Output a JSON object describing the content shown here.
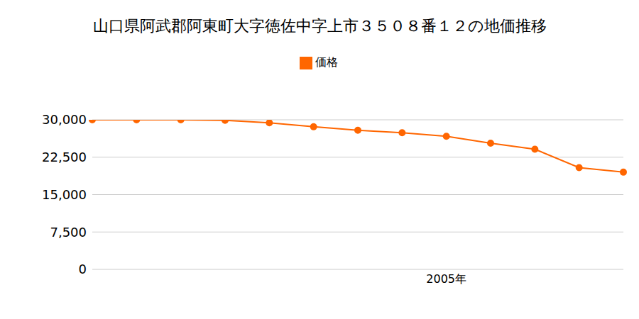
{
  "chart_data": {
    "type": "line",
    "title": "山口県阿武郡阿東町大字徳佐中字上市３５０８番１２の地価推移",
    "categories": [
      null,
      null,
      null,
      null,
      null,
      null,
      null,
      null,
      "2005年",
      null,
      null,
      null,
      null
    ],
    "series": [
      {
        "name": "価格",
        "color": "#ff6600",
        "values": [
          30000,
          30000,
          30000,
          29900,
          29400,
          28600,
          27900,
          27400,
          26700,
          25300,
          24100,
          20400,
          19500
        ],
        "marker": "circle"
      }
    ],
    "ylim": [
      0,
      30000
    ],
    "yticks": [
      0,
      {
        "value": 7500,
        "label": "7,500"
      },
      {
        "value": 15000,
        "label": "15,000"
      },
      {
        "value": 22500,
        "label": "22,500"
      },
      {
        "value": 30000,
        "label": "30,000"
      }
    ],
    "grid": true,
    "legend": "top"
  }
}
